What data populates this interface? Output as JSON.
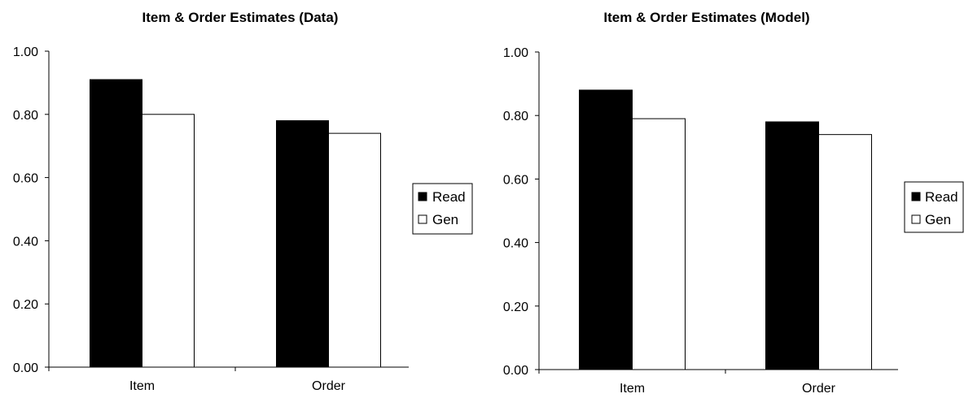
{
  "chart_data": [
    {
      "type": "bar",
      "title": "Item & Order Estimates (Data)",
      "xlabel": "",
      "ylabel": "",
      "categories": [
        "Item",
        "Order"
      ],
      "series": [
        {
          "name": "Read",
          "values": [
            0.91,
            0.78
          ],
          "color": "#000000"
        },
        {
          "name": "Gen",
          "values": [
            0.8,
            0.74
          ],
          "color": "#ffffff"
        }
      ],
      "ylim": [
        0,
        1
      ],
      "yticks": [
        "0.00",
        "0.20",
        "0.40",
        "0.60",
        "0.80",
        "1.00"
      ],
      "grid": false,
      "legend_position": "right"
    },
    {
      "type": "bar",
      "title": "Item & Order Estimates (Model)",
      "xlabel": "",
      "ylabel": "",
      "categories": [
        "Item",
        "Order"
      ],
      "series": [
        {
          "name": "Read",
          "values": [
            0.88,
            0.78
          ],
          "color": "#000000"
        },
        {
          "name": "Gen",
          "values": [
            0.79,
            0.74
          ],
          "color": "#ffffff"
        }
      ],
      "ylim": [
        0,
        1
      ],
      "yticks": [
        "0.00",
        "0.20",
        "0.40",
        "0.60",
        "0.80",
        "1.00"
      ],
      "grid": false,
      "legend_position": "right"
    }
  ]
}
